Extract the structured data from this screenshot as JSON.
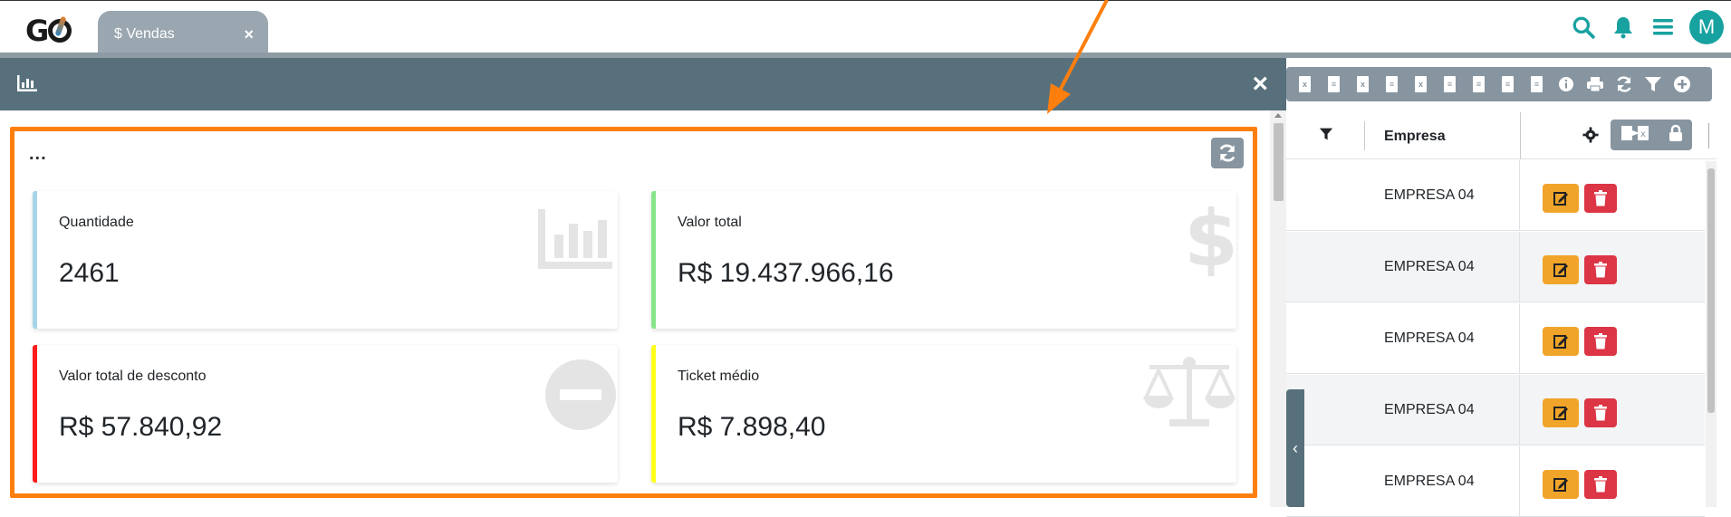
{
  "topbar": {
    "logo_text": "G",
    "tab_label": "$ Vendas",
    "tab_close": "×",
    "avatar_initial": "M",
    "icons": [
      "search-icon",
      "bell-icon",
      "menu-icon"
    ],
    "accent_color": "#17a2a0"
  },
  "modal": {
    "header_icon": "bar-chart-icon",
    "close_label": "×",
    "dots": "...",
    "cards": [
      {
        "title": "Quantidade",
        "value": "2461",
        "accent": "#a8d4ea",
        "icon": "bar-chart-icon"
      },
      {
        "title": "Valor total",
        "value": "R$ 19.437.966,16",
        "accent": "#86e58a",
        "icon": "dollar-icon"
      },
      {
        "title": "Valor total de desconto",
        "value": "R$ 57.840,92",
        "accent": "#ff1a1a",
        "icon": "minus-circle-icon"
      },
      {
        "title": "Ticket médio",
        "value": "R$ 7.898,40",
        "accent": "#ffff1a",
        "icon": "balance-scale-icon"
      }
    ],
    "highlight_color": "#ff7f0e"
  },
  "grid": {
    "column_header": "Empresa",
    "rows": [
      {
        "empresa": "EMPRESA 04"
      },
      {
        "empresa": "EMPRESA 04"
      },
      {
        "empresa": "EMPRESA 04"
      },
      {
        "empresa": "EMPRESA 04"
      },
      {
        "empresa": "EMPRESA 04"
      }
    ],
    "toolbar_icons": [
      "excel-icon",
      "pdf-icon",
      "excel-icon",
      "pdf-icon",
      "excel-icon",
      "pdf-icon",
      "pdf-icon",
      "pdf-icon",
      "pdf-icon",
      "info-icon",
      "print-icon",
      "refresh-icon",
      "filter-icon",
      "add-icon"
    ],
    "edit_color": "#f0a429",
    "delete_color": "#dc3545"
  }
}
